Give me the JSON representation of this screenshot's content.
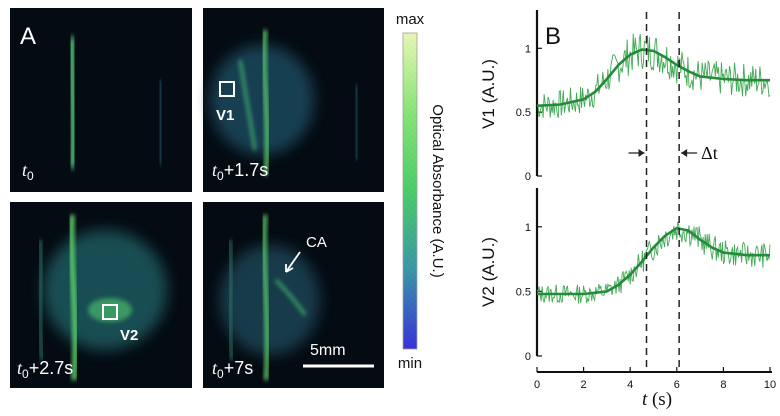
{
  "panels": {
    "A": {
      "label": "A",
      "frames": [
        {
          "time": "t",
          "sub": "0",
          "suffix": ""
        },
        {
          "time": "t",
          "sub": "0",
          "suffix": "+1.7s",
          "roi": "V1"
        },
        {
          "time": "t",
          "sub": "0",
          "suffix": "+2.7s",
          "roi": "V2"
        },
        {
          "time": "t",
          "sub": "0",
          "suffix": "+7s",
          "annotation": "CA",
          "scale_bar": "5mm"
        }
      ],
      "colorbar": {
        "max_label": "max",
        "min_label": "min",
        "title": "Optical Absorbance (A.U.)"
      },
      "colors": {
        "image_bg": "#050b12",
        "vessel": "#5cd16a",
        "glow": "#2f7a6a",
        "tissue": "#1d4d63"
      }
    },
    "B": {
      "label": "B"
    }
  },
  "chart_data": [
    {
      "type": "line",
      "ylabel": "V1 (A.U.)",
      "yticks": [
        0,
        0.5,
        1
      ],
      "ylim": [
        0,
        1.3
      ],
      "xlim": [
        0,
        10
      ],
      "series": [
        {
          "role": "raw",
          "color": "#2ea043",
          "amp": 0.1,
          "seed": 7
        },
        {
          "role": "fit",
          "color": "#238b3a",
          "x": [
            0,
            1,
            2,
            2.5,
            3,
            3.5,
            4,
            4.5,
            5,
            5.5,
            6,
            6.5,
            7,
            8,
            9,
            10
          ],
          "y": [
            0.55,
            0.56,
            0.6,
            0.66,
            0.76,
            0.87,
            0.95,
            0.99,
            0.98,
            0.93,
            0.87,
            0.82,
            0.78,
            0.76,
            0.75,
            0.75
          ]
        }
      ]
    },
    {
      "type": "line",
      "ylabel": "V2 (A.U.)",
      "xlabel_italic": "t",
      "xlabel_unit": " (s)",
      "yticks": [
        0,
        0.5,
        1
      ],
      "ylim": [
        0,
        1.3
      ],
      "xlim": [
        0,
        10
      ],
      "xticks": [
        0,
        2,
        4,
        6,
        8,
        10
      ],
      "series": [
        {
          "role": "raw",
          "color": "#2ea043",
          "amp": 0.07,
          "seed": 13
        },
        {
          "role": "fit",
          "color": "#238b3a",
          "x": [
            0,
            1,
            2,
            3,
            3.5,
            4,
            4.5,
            5,
            5.5,
            6,
            6.5,
            7,
            7.5,
            8,
            9,
            10
          ],
          "y": [
            0.48,
            0.48,
            0.48,
            0.5,
            0.55,
            0.63,
            0.73,
            0.84,
            0.93,
            0.99,
            0.97,
            0.9,
            0.84,
            0.8,
            0.78,
            0.78
          ]
        }
      ]
    }
  ],
  "markers": {
    "t1": 4.7,
    "t2": 6.1,
    "delta_label": "Δt"
  }
}
